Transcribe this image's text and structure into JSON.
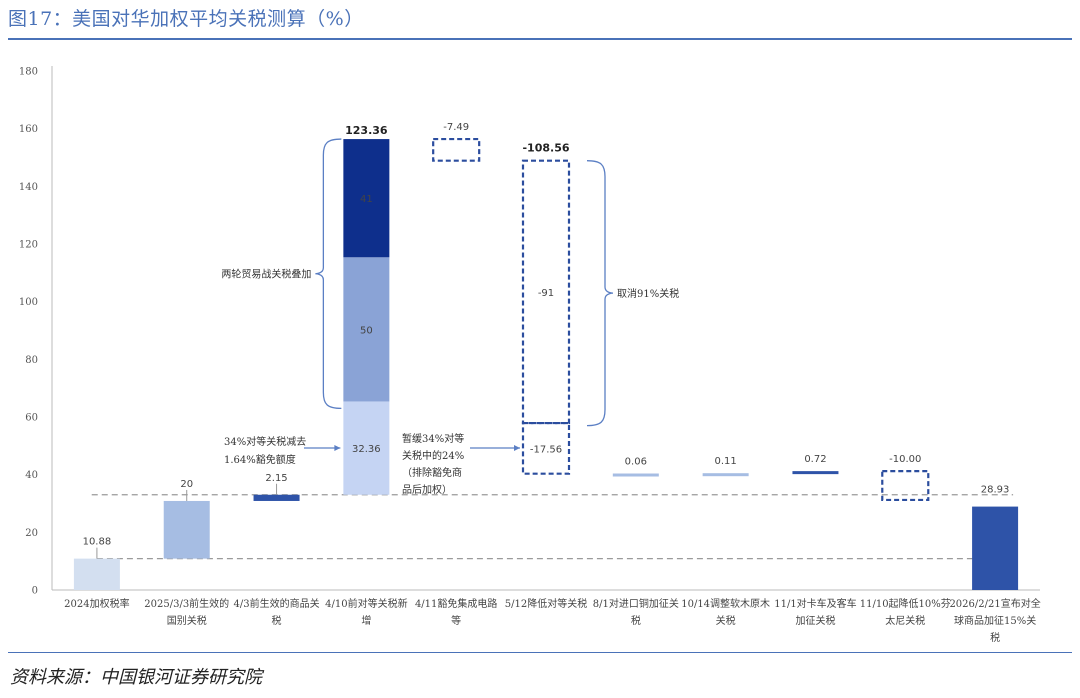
{
  "header": {
    "title": "图17：美国对华加权平均关税测算（%）"
  },
  "footer": {
    "source": "资料来源：中国银河证券研究院"
  },
  "colors": {
    "accent": "#4a72b8",
    "base_2024": "#d3dff0",
    "step_2025": "#a6bde3",
    "pale": "#c5d4f3",
    "mid": "#8aa3d6",
    "dark": "#0e2f8c",
    "navy": "#2e53a8",
    "decrease_border": "#2b4d9e"
  },
  "chart_data": {
    "type": "bar",
    "subtype": "waterfall",
    "ylim": [
      0,
      180
    ],
    "yticks": [
      0,
      20,
      40,
      60,
      80,
      100,
      120,
      140,
      160,
      180
    ],
    "categories": [
      [
        "2024加权税率"
      ],
      [
        "2025/3/3前生效的",
        "国别关税"
      ],
      [
        "4/3前生效的商品关",
        "税"
      ],
      [
        "4/10前对等关税新",
        "增"
      ],
      [
        "4/11豁免集成电路",
        "等"
      ],
      [
        "5/12降低对等关税"
      ],
      [
        "8/1对进口铜加征关",
        "税"
      ],
      [
        "10/14调整软木原木",
        "关税"
      ],
      [
        "11/1对卡车及客车",
        "加征关税"
      ],
      [
        "11/10起降低10%芬",
        "太尼关税"
      ],
      [
        "2026/2/21宣布对全",
        "球商品加征15%关",
        "税"
      ]
    ],
    "bars": [
      {
        "kind": "total",
        "start": 0,
        "end": 10.88,
        "label": "10.88",
        "color": "base_2024"
      },
      {
        "kind": "increase",
        "start": 10.88,
        "end": 30.88,
        "label": "20",
        "color": "step_2025"
      },
      {
        "kind": "increase",
        "start": 30.88,
        "end": 33.03,
        "label": "2.15",
        "color": "navy"
      },
      {
        "kind": "increase",
        "start": 33.03,
        "end": 156.39,
        "label": "123.36",
        "color": null,
        "segments": [
          {
            "start": 33.03,
            "end": 65.39,
            "label": "32.36",
            "color": "pale"
          },
          {
            "start": 65.39,
            "end": 115.39,
            "label": "50",
            "color": "mid"
          },
          {
            "start": 115.39,
            "end": 156.39,
            "label": "41",
            "color": "dark"
          }
        ]
      },
      {
        "kind": "decrease",
        "start": 156.39,
        "end": 148.9,
        "label": "-7.49"
      },
      {
        "kind": "decrease",
        "start": 148.9,
        "end": 40.34,
        "label": "-108.56",
        "segments": [
          {
            "start": 148.9,
            "end": 57.9,
            "label": "-91"
          },
          {
            "start": 57.9,
            "end": 40.34,
            "label": "-17.56"
          }
        ]
      },
      {
        "kind": "increase",
        "start": 40.34,
        "end": 40.4,
        "label": "0.06",
        "color": "step_2025"
      },
      {
        "kind": "increase",
        "start": 40.4,
        "end": 40.51,
        "label": "0.11",
        "color": "step_2025"
      },
      {
        "kind": "increase",
        "start": 40.51,
        "end": 41.23,
        "label": "0.72",
        "color": "navy"
      },
      {
        "kind": "decrease",
        "start": 41.23,
        "end": 31.23,
        "label": "-10.00"
      },
      {
        "kind": "total",
        "start": 0,
        "end": 28.93,
        "label": "28.93",
        "color": "navy"
      }
    ],
    "reference_lines": [
      33.03,
      10.88
    ],
    "annotations": {
      "brace_left": "两轮贸易战关税叠加",
      "brace_right": "取消91%关税",
      "note_left": [
        "34%对等关税减去",
        "1.64%豁免额度"
      ],
      "note_mid": [
        "暂缓34%对等",
        "关税中的24%",
        "（排除豁免商",
        "品后加权）"
      ]
    }
  }
}
